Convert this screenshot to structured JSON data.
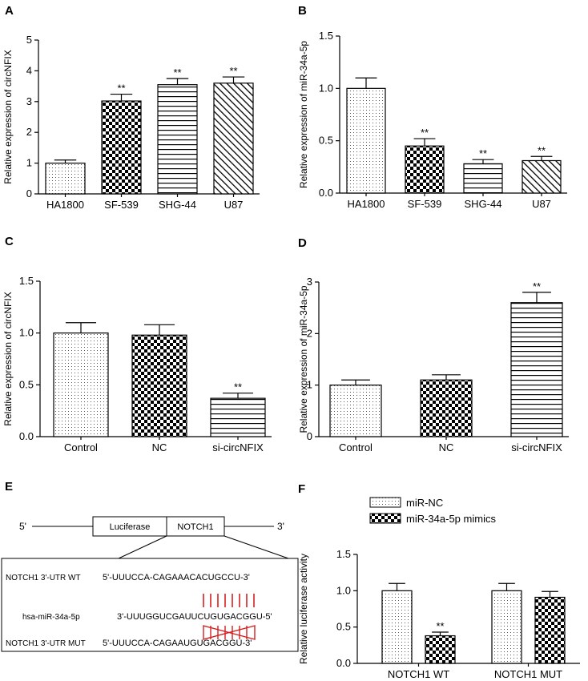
{
  "panel_labels": [
    "A",
    "B",
    "C",
    "D",
    "E",
    "F"
  ],
  "chart_data": [
    {
      "panel": "A",
      "type": "bar",
      "title": "",
      "xlabel": "",
      "ylabel": "Relative expression of circNFIX",
      "categories": [
        "HA1800",
        "SF-539",
        "SHG-44",
        "U87"
      ],
      "values": [
        1.0,
        3.02,
        3.55,
        3.6
      ],
      "errors": [
        0.1,
        0.22,
        0.2,
        0.2
      ],
      "significance": [
        "",
        "**",
        "**",
        "**"
      ],
      "patterns": [
        "dots",
        "checker",
        "hlines",
        "diag"
      ],
      "ylim": [
        0,
        5
      ],
      "yticks": [
        0,
        1,
        2,
        3,
        4,
        5
      ],
      "ytick_labels": [
        "0",
        "1",
        "2",
        "3",
        "4",
        "5"
      ]
    },
    {
      "panel": "B",
      "type": "bar",
      "title": "",
      "xlabel": "",
      "ylabel": "Relative expression of miR-34a-5p",
      "categories": [
        "HA1800",
        "SF-539",
        "SHG-44",
        "U87"
      ],
      "values": [
        1.0,
        0.45,
        0.28,
        0.31
      ],
      "errors": [
        0.1,
        0.07,
        0.04,
        0.04
      ],
      "significance": [
        "",
        "**",
        "**",
        "**"
      ],
      "patterns": [
        "dots",
        "checker",
        "hlines",
        "diag"
      ],
      "ylim": [
        0,
        1.5
      ],
      "yticks": [
        0,
        0.5,
        1.0,
        1.5
      ],
      "ytick_labels": [
        "0.0",
        "0.5",
        "1.0",
        "1.5"
      ]
    },
    {
      "panel": "C",
      "type": "bar",
      "title": "",
      "xlabel": "",
      "ylabel": "Relative expression of circNFIX",
      "categories": [
        "Control",
        "NC",
        "si-circNFIX"
      ],
      "values": [
        1.0,
        0.98,
        0.37
      ],
      "errors": [
        0.1,
        0.1,
        0.05
      ],
      "significance": [
        "",
        "",
        "**"
      ],
      "patterns": [
        "dots",
        "checker",
        "hlines"
      ],
      "ylim": [
        0,
        1.5
      ],
      "yticks": [
        0,
        0.5,
        1.0,
        1.5
      ],
      "ytick_labels": [
        "0.0",
        "0.5",
        "1.0",
        "1.5"
      ]
    },
    {
      "panel": "D",
      "type": "bar",
      "title": "",
      "xlabel": "",
      "ylabel": "Relative expression of miR-34a-5p",
      "categories": [
        "Control",
        "NC",
        "si-circNFIX"
      ],
      "values": [
        1.0,
        1.1,
        2.6
      ],
      "errors": [
        0.1,
        0.1,
        0.2
      ],
      "significance": [
        "",
        "",
        "**"
      ],
      "patterns": [
        "dots",
        "checker",
        "hlines"
      ],
      "ylim": [
        0,
        3
      ],
      "yticks": [
        0,
        1,
        2,
        3
      ],
      "ytick_labels": [
        "0",
        "1",
        "2",
        "3"
      ]
    },
    {
      "panel": "F",
      "type": "bar",
      "title": "",
      "xlabel": "",
      "ylabel": "Relative luciferase activity",
      "categories": [
        "NOTCH1 WT",
        "NOTCH1 MUT"
      ],
      "series": [
        {
          "name": "miR-NC",
          "pattern": "dots",
          "values": [
            1.0,
            1.0
          ],
          "errors": [
            0.1,
            0.1
          ]
        },
        {
          "name": "miR-34a-5p mimics",
          "pattern": "checker",
          "values": [
            0.38,
            0.91
          ],
          "errors": [
            0.05,
            0.08
          ]
        }
      ],
      "significance": [
        [
          "",
          ""
        ],
        [
          "**",
          ""
        ]
      ],
      "legend": "top-left",
      "ylim": [
        0,
        1.5
      ],
      "yticks": [
        0,
        0.5,
        1.0,
        1.5
      ],
      "ytick_labels": [
        "0.0",
        "0.5",
        "1.0",
        "1.5"
      ]
    }
  ],
  "schematic": {
    "five_prime": "5'",
    "three_prime": "3'",
    "box_luciferase": "Luciferase",
    "box_notch1": "NOTCH1",
    "wt_label": "NOTCH1 3'-UTR WT",
    "wt_seq": "5'-UUUCCA-CAGAAACACUGCCU-3'",
    "mir_label": "hsa-miR-34a-5p",
    "mir_seq": "3'-UUUGGUCGAUUCUGUGACGGU-5'",
    "mut_label": "NOTCH1 3'-UTR MUT",
    "mut_seq": "5'-UUUCCA-CAGAAUGUGACGGU-3'",
    "pair_color": "#d42020"
  }
}
